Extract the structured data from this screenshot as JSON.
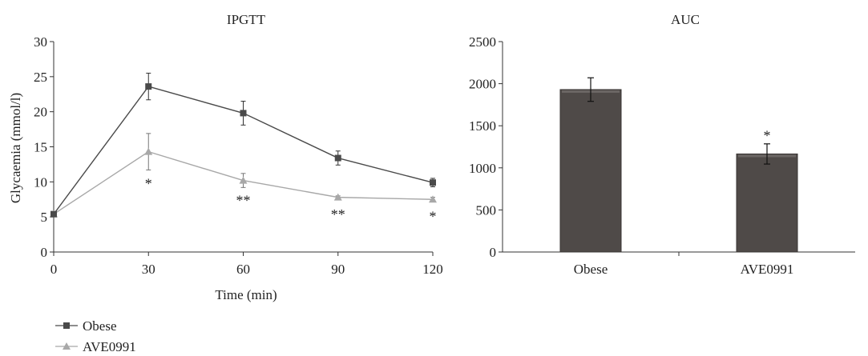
{
  "chart_data": [
    {
      "type": "line",
      "title": "IPGTT",
      "xlabel": "Time (min)",
      "ylabel": "Glycaemia (mmol/l)",
      "x": [
        0,
        30,
        60,
        90,
        120
      ],
      "xticks": [
        "0",
        "30",
        "60",
        "90",
        "120"
      ],
      "yticks": [
        "0",
        "5",
        "10",
        "15",
        "20",
        "25",
        "30"
      ],
      "xlim": [
        0,
        120
      ],
      "ylim": [
        0,
        30
      ],
      "legend_position": "bottom-left",
      "series": [
        {
          "name": "Obese",
          "marker": "square",
          "color": "#4a4a4a",
          "values": [
            5.4,
            23.6,
            19.8,
            13.4,
            9.9
          ],
          "errors": [
            0.3,
            1.9,
            1.7,
            1.0,
            0.6
          ]
        },
        {
          "name": "AVE0991",
          "marker": "triangle",
          "color": "#a8a8a8",
          "values": [
            5.4,
            14.3,
            10.2,
            7.8,
            7.5
          ],
          "errors": [
            0.3,
            2.6,
            1.0,
            0.2,
            0.3
          ]
        }
      ],
      "annotations": [
        {
          "x": 30,
          "y": 10.0,
          "text": "*"
        },
        {
          "x": 60,
          "y": 7.6,
          "text": "**"
        },
        {
          "x": 90,
          "y": 5.6,
          "text": "**"
        },
        {
          "x": 120,
          "y": 5.3,
          "text": "*"
        }
      ]
    },
    {
      "type": "bar",
      "title": "AUC",
      "categories": [
        "Obese",
        "AVE0991"
      ],
      "values": [
        1930,
        1165
      ],
      "errors": [
        140,
        120
      ],
      "yticks": [
        "0",
        "500",
        "1000",
        "1500",
        "2000",
        "2500"
      ],
      "ylim": [
        0,
        2500
      ],
      "bar_color": "#4f4a48",
      "annotations": [
        {
          "category": "AVE0991",
          "y": 1400,
          "text": "*"
        }
      ]
    }
  ]
}
